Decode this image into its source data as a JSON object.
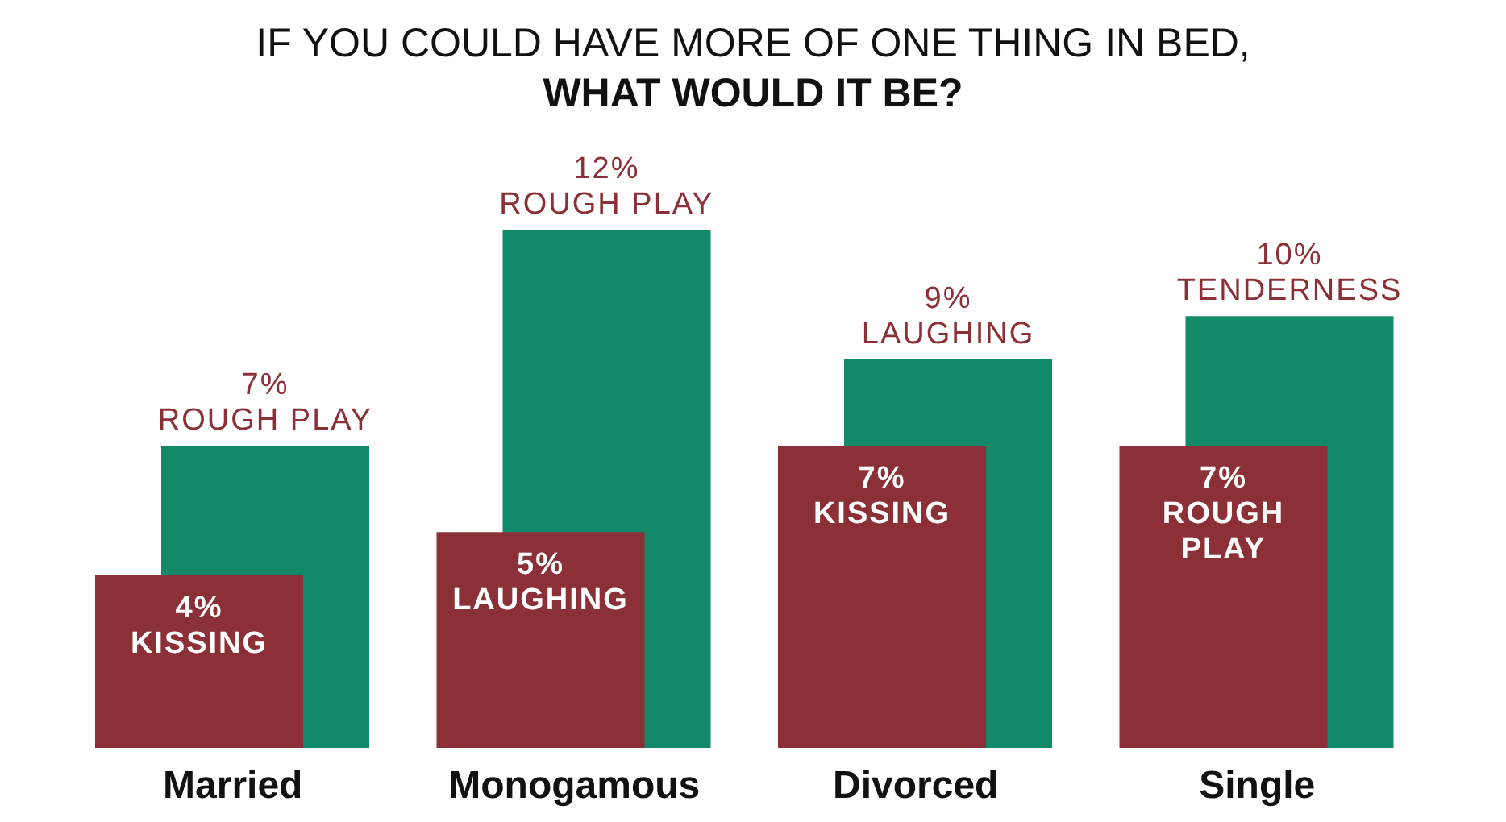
{
  "chart_data": {
    "type": "bar",
    "title": "IF YOU COULD HAVE MORE OF ONE THING IN BED,",
    "subtitle": "WHAT WOULD IT BE?",
    "categories": [
      "Married",
      "Monogamous",
      "Divorced",
      "Single"
    ],
    "series": [
      {
        "color": "#8b3036",
        "values": [
          4,
          5,
          7,
          7
        ],
        "value_labels": [
          "4% KISSING",
          "5% LAUGHING",
          "7% KISSING",
          "7% ROUGH PLAY"
        ]
      },
      {
        "color": "#128a6a",
        "values": [
          7,
          12,
          9,
          10
        ],
        "value_labels": [
          "7% ROUGH PLAY",
          "12% ROUGH PLAY",
          "9% LAUGHING",
          "10% TENDERNESS"
        ]
      }
    ],
    "grid": false,
    "legend": false
  }
}
